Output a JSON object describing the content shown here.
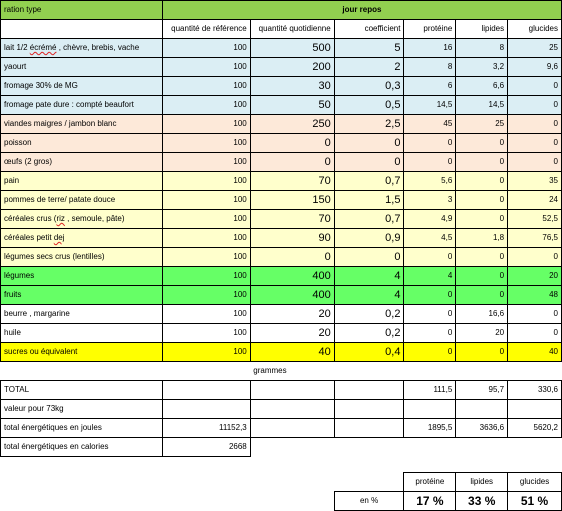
{
  "header": {
    "ration_type": "ration type",
    "day_title": "jour  repos"
  },
  "columns": [
    "quantité de référence",
    "quantité quotidienne",
    "coefficient",
    "protéine",
    "lipides",
    "glucides"
  ],
  "colors": {
    "header_green": "#92d050",
    "dairy_blue": "#dbeef4",
    "protein_peach": "#fde9d9",
    "starch_cream": "#ffffcc",
    "veg_green": "#66ff66",
    "sugar_yellow": "#ffff00"
  },
  "rows": [
    {
      "pre": "lait 1/2 ",
      "typo": "écrémé",
      "post": " , chèvre, brebis, vache",
      "ref": "100",
      "qty": "500",
      "coef": "5",
      "prot": "16",
      "lip": "8",
      "glu": "25",
      "band": "blue"
    },
    {
      "pre": "yaourt",
      "typo": "",
      "post": "",
      "ref": "100",
      "qty": "200",
      "coef": "2",
      "prot": "8",
      "lip": "3,2",
      "glu": "9,6",
      "band": "blue"
    },
    {
      "pre": "fromage   30% de MG",
      "typo": "",
      "post": "",
      "ref": "100",
      "qty": "30",
      "coef": "0,3",
      "prot": "6",
      "lip": "6,6",
      "glu": "0",
      "band": "blue"
    },
    {
      "pre": "fromage pate dure : compté beaufort",
      "typo": "",
      "post": "",
      "ref": "100",
      "qty": "50",
      "coef": "0,5",
      "prot": "14,5",
      "lip": "14,5",
      "glu": "0",
      "band": "blue"
    },
    {
      "pre": "viandes maigres / jambon blanc",
      "typo": "",
      "post": "",
      "ref": "100",
      "qty": "250",
      "coef": "2,5",
      "prot": "45",
      "lip": "25",
      "glu": "0",
      "band": "peach"
    },
    {
      "pre": "poisson",
      "typo": "",
      "post": "",
      "ref": "100",
      "qty": "0",
      "coef": "0",
      "prot": "0",
      "lip": "0",
      "glu": "0",
      "band": "peach"
    },
    {
      "pre": "œufs (2 gros)",
      "typo": "",
      "post": "",
      "ref": "100",
      "qty": "0",
      "coef": "0",
      "prot": "0",
      "lip": "0",
      "glu": "0",
      "band": "peach"
    },
    {
      "pre": "pain",
      "typo": "",
      "post": "",
      "ref": "100",
      "qty": "70",
      "coef": "0,7",
      "prot": "5,6",
      "lip": "0",
      "glu": "35",
      "band": "cream"
    },
    {
      "pre": "pommes de terre/ patate douce",
      "typo": "",
      "post": "",
      "ref": "100",
      "qty": "150",
      "coef": "1,5",
      "prot": "3",
      "lip": "0",
      "glu": "24",
      "band": "cream"
    },
    {
      "pre": "céréales crus (",
      "typo": "riz",
      "post": " , semoule, pâte)",
      "ref": "100",
      "qty": "70",
      "coef": "0,7",
      "prot": "4,9",
      "lip": "0",
      "glu": "52,5",
      "band": "cream"
    },
    {
      "pre": "céréales  petit ",
      "typo": "dej",
      "post": "",
      "ref": "100",
      "qty": "90",
      "coef": "0,9",
      "prot": "4,5",
      "lip": "1,8",
      "glu": "76,5",
      "band": "cream"
    },
    {
      "pre": "légumes secs  crus (lentilles)",
      "typo": "",
      "post": "",
      "ref": "100",
      "qty": "0",
      "coef": "0",
      "prot": "0",
      "lip": "0",
      "glu": "0",
      "band": "cream"
    },
    {
      "pre": "légumes",
      "typo": "",
      "post": "",
      "ref": "100",
      "qty": "400",
      "coef": "4",
      "prot": "4",
      "lip": "0",
      "glu": "20",
      "band": "lgreen"
    },
    {
      "pre": "fruits",
      "typo": "",
      "post": "",
      "ref": "100",
      "qty": "400",
      "coef": "4",
      "prot": "0",
      "lip": "0",
      "glu": "48",
      "band": "lgreen"
    },
    {
      "pre": "beurre , margarine",
      "typo": "",
      "post": "",
      "ref": "100",
      "qty": "20",
      "coef": "0,2",
      "prot": "0",
      "lip": "16,6",
      "glu": "0",
      "band": "white"
    },
    {
      "pre": "huile",
      "typo": "",
      "post": "",
      "ref": "100",
      "qty": "20",
      "coef": "0,2",
      "prot": "0",
      "lip": "20",
      "glu": "0",
      "band": "white"
    },
    {
      "pre": "sucres ou équivalent",
      "typo": "",
      "post": "",
      "ref": "100",
      "qty": "40",
      "coef": "0,4",
      "prot": "0",
      "lip": "0",
      "glu": "40",
      "band": "yel"
    }
  ],
  "grammes_label": "grammes",
  "totals": {
    "total_label": "TOTAL",
    "total_prot": "111,5",
    "total_lip": "95,7",
    "total_glu": "330,6",
    "valeur_label": "valeur pour 73kg",
    "joules_label": "total énergétiques en joules",
    "joules_ref": "11152,3",
    "joules_prot": "1895,5",
    "joules_lip": "3636,6",
    "joules_glu": "5620,2",
    "calories_label": "total énergétiques en calories",
    "calories_value": "2668"
  },
  "percent": {
    "h_prot": "protéine",
    "h_lip": "lipides",
    "h_glu": "glucides",
    "label": "en %",
    "prot": "17 %",
    "lip": "33 %",
    "glu": "51 %"
  }
}
